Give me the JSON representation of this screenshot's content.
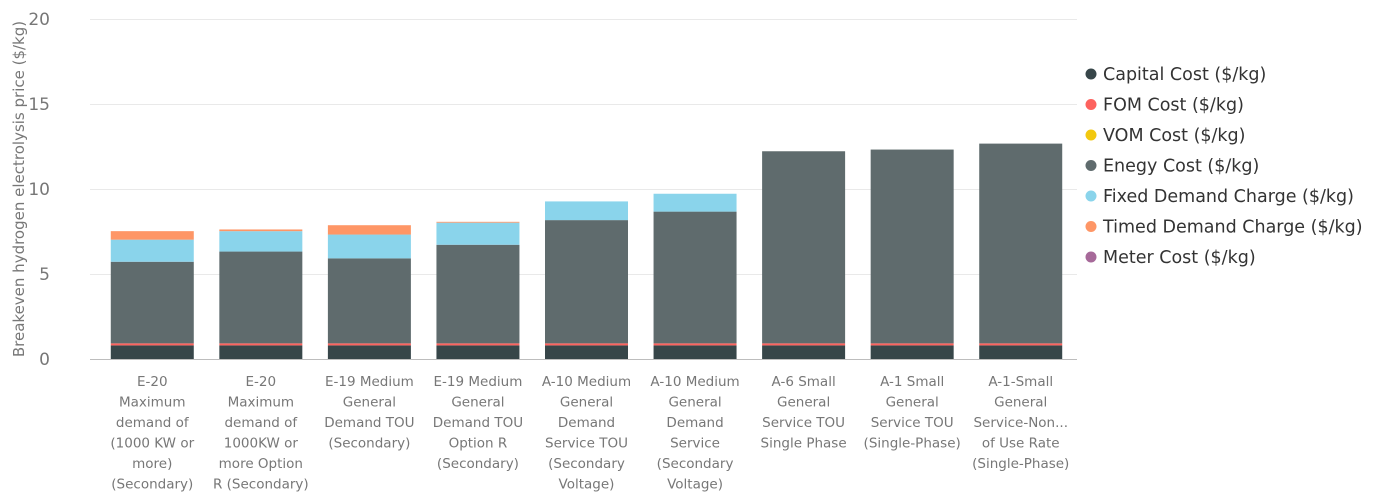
{
  "chart_data": {
    "type": "bar",
    "stacked": true,
    "ylabel": "Breakeven hydrogen electrolysis price ($/kg)",
    "xlabel": "",
    "ylim": [
      0,
      20
    ],
    "yticks": [
      0,
      5,
      10,
      15,
      20
    ],
    "grid": true,
    "legend_position": "right",
    "categories": [
      [
        "E-20",
        "Maximum",
        "demand of",
        "(1000 KW or",
        "more)",
        "(Secondary)"
      ],
      [
        "E-20",
        "Maximum",
        "demand of",
        "1000KW or",
        "more Option",
        "R (Secondary)"
      ],
      [
        "E-19 Medium",
        "General",
        "Demand TOU",
        "(Secondary)"
      ],
      [
        "E-19 Medium",
        "General",
        "Demand TOU",
        "Option R",
        "(Secondary)"
      ],
      [
        "A-10 Medium",
        "General",
        "Demand",
        "Service TOU",
        "(Secondary",
        "Voltage)"
      ],
      [
        "A-10 Medium",
        "General",
        "Demand",
        "Service",
        "(Secondary",
        "Voltage)"
      ],
      [
        "A-6 Small",
        "General",
        "Service TOU",
        "Single Phase"
      ],
      [
        "A-1 Small",
        "General",
        "Service TOU",
        "(Single-Phase)"
      ],
      [
        "A-1-Small",
        "General",
        "Service-Non...",
        "of Use Rate",
        "(Single-Phase)"
      ]
    ],
    "series": [
      {
        "name": "Capital Cost ($/kg)",
        "color": "#374649",
        "values": [
          0.8,
          0.8,
          0.8,
          0.8,
          0.8,
          0.8,
          0.8,
          0.8,
          0.8
        ]
      },
      {
        "name": "FOM Cost ($/kg)",
        "color": "#FD625E",
        "values": [
          0.12,
          0.12,
          0.12,
          0.12,
          0.12,
          0.12,
          0.12,
          0.12,
          0.12
        ]
      },
      {
        "name": "VOM Cost ($/kg)",
        "color": "#F2C80F",
        "values": [
          0,
          0,
          0,
          0,
          0,
          0,
          0,
          0,
          0
        ]
      },
      {
        "name": "Enegy Cost ($/kg)",
        "color": "#5F6B6D",
        "values": [
          4.8,
          5.4,
          5.0,
          5.8,
          7.25,
          7.75,
          11.3,
          11.4,
          11.75
        ]
      },
      {
        "name": "Fixed Demand Charge ($/kg)",
        "color": "#8AD4EB",
        "values": [
          1.3,
          1.2,
          1.4,
          1.3,
          1.1,
          1.05,
          0,
          0,
          0
        ]
      },
      {
        "name": "Timed Demand Charge ($/kg)",
        "color": "#FE9666",
        "values": [
          0.5,
          0.1,
          0.55,
          0.05,
          0,
          0,
          0,
          0,
          0
        ]
      },
      {
        "name": "Meter Cost ($/kg)",
        "color": "#A66999",
        "values": [
          0,
          0,
          0,
          0,
          0,
          0,
          0,
          0,
          0
        ]
      }
    ]
  }
}
